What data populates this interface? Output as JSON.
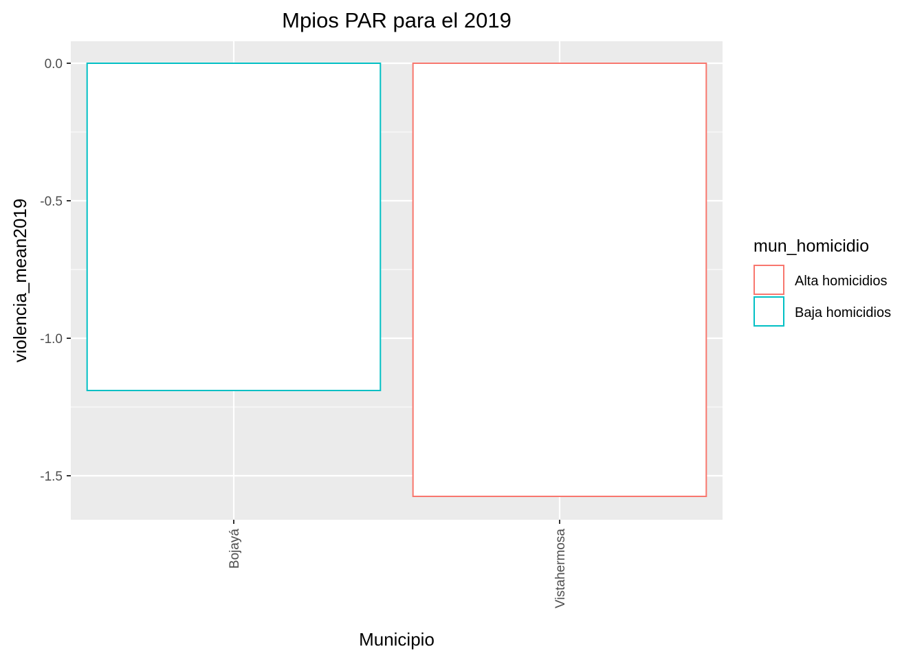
{
  "chart_data": {
    "type": "bar",
    "title": "Mpios PAR para el 2019",
    "xlabel": "Municipio",
    "ylabel": "violencia_mean2019",
    "categories": [
      "Bojayá",
      "Vistahermosa"
    ],
    "values": [
      -1.19,
      -1.575
    ],
    "bar_groups": [
      "Baja homicidios",
      "Alta homicidios"
    ],
    "ylim": [
      -1.66,
      0.08
    ],
    "yticks": [
      {
        "value": 0.0,
        "label": "0.0"
      },
      {
        "value": -0.5,
        "label": "-0.5"
      },
      {
        "value": -1.0,
        "label": "-1.0"
      },
      {
        "value": -1.5,
        "label": "-1.5"
      }
    ],
    "grid": true,
    "legend": {
      "title": "mun_homicidio",
      "placement": "right",
      "items": [
        {
          "label": "Alta homicidios",
          "color": "#F8766D"
        },
        {
          "label": "Baja homicidios",
          "color": "#00BFC4"
        }
      ]
    },
    "colors": {
      "panel_bg": "#EBEBEB",
      "grid": "#FFFFFF",
      "bar_fill": "#FFFFFF"
    }
  }
}
